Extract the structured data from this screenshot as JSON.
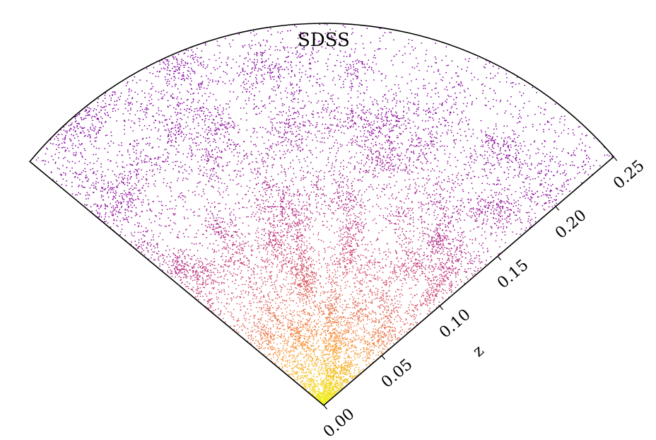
{
  "chart_data": {
    "type": "scatter",
    "projection": "polar-wedge",
    "title": "SDSS",
    "rlabel": "z",
    "rlim": [
      0.0,
      0.25
    ],
    "rticks": [
      0.0,
      0.05,
      0.1,
      0.15,
      0.2,
      0.25
    ],
    "rtick_labels": [
      "0.00",
      "0.05",
      "0.10",
      "0.15",
      "0.20",
      "0.25"
    ],
    "colormap": "plasma",
    "color_by": "point density (high density near z = 0)",
    "point_count_approx": 12000,
    "grid": false,
    "legend": "none",
    "colors": {
      "low_density": "#7a1fd0",
      "mid_density": "#c13b7a",
      "high_density": "#f9e23c",
      "frame": "#000000"
    }
  }
}
